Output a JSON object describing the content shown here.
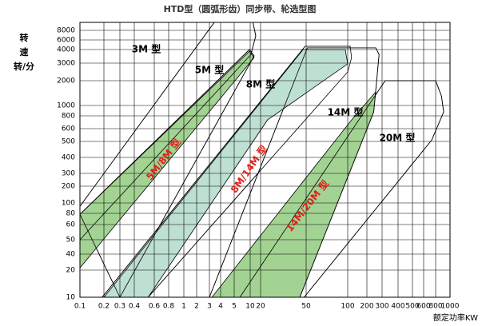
{
  "chart_data": {
    "type": "region",
    "title": "HTD型（圆弧形齿）同步带、轮选型图",
    "y_label": [
      "转",
      "速",
      "转/分"
    ],
    "x_label": "额定功率KW",
    "xlim": [
      0.1,
      1000
    ],
    "ylim": [
      10,
      10000
    ],
    "xticks": [
      0.1,
      0.2,
      0.3,
      0.4,
      0.6,
      0.8,
      1,
      2,
      3,
      4,
      5,
      10,
      20,
      50,
      100,
      200,
      300,
      400,
      500,
      600,
      800,
      1000
    ],
    "yticks": [
      10,
      20,
      40,
      50,
      60,
      80,
      100,
      200,
      300,
      400,
      500,
      600,
      800,
      1000,
      2000,
      3000,
      4000,
      6000,
      8000
    ],
    "grid": true,
    "regions": [
      {
        "name": "3M 型",
        "color": "#ffffff",
        "x": [
          0.1,
          3.4,
          12,
          14.5,
          10.5,
          0.1
        ],
        "y": [
          93,
          10000,
          10000,
          6800,
          3600,
          50
        ]
      },
      {
        "name": "5M 型",
        "color": "#ffffff",
        "x": [
          0.1,
          9.7,
          13,
          0.3
        ],
        "y": [
          78,
          4000,
          3500,
          10
        ]
      },
      {
        "name": "8M 型",
        "color": "#ffffff",
        "x": [
          0.19,
          49,
          109,
          115,
          100,
          0.53
        ],
        "y": [
          10,
          4600,
          4600,
          3370,
          2450,
          10
        ]
      },
      {
        "name": "14M 型",
        "color": "#ffffff",
        "x": [
          3,
          51,
          253,
          277,
          240,
          44
        ],
        "y": [
          10,
          4300,
          4300,
          3600,
          870,
          10
        ]
      },
      {
        "name": "20M 型",
        "color": "#ffffff",
        "x": [
          6.4,
          317,
          800,
          875,
          906,
          730,
          48
        ],
        "y": [
          10,
          2000,
          2000,
          1310,
          870,
          511,
          10
        ]
      }
    ],
    "overlaps": [
      {
        "name": "5M/8M 型",
        "color": "#a3d393",
        "x": [
          0.1,
          9.7,
          13,
          0.1
        ],
        "y": [
          78,
          3860,
          3370,
          22
        ]
      },
      {
        "name": "8M/14M 型",
        "color": "#bde0d2",
        "x": [
          0.2,
          47,
          96,
          100,
          23,
          0.53
        ],
        "y": [
          10,
          4000,
          4000,
          2950,
          730,
          10
        ]
      },
      {
        "name": "14M/20M 型",
        "color": "#a3d393",
        "x": [
          3.2,
          115,
          253,
          240,
          44
        ],
        "y": [
          10,
          730,
          1460,
          870,
          10
        ]
      }
    ]
  }
}
